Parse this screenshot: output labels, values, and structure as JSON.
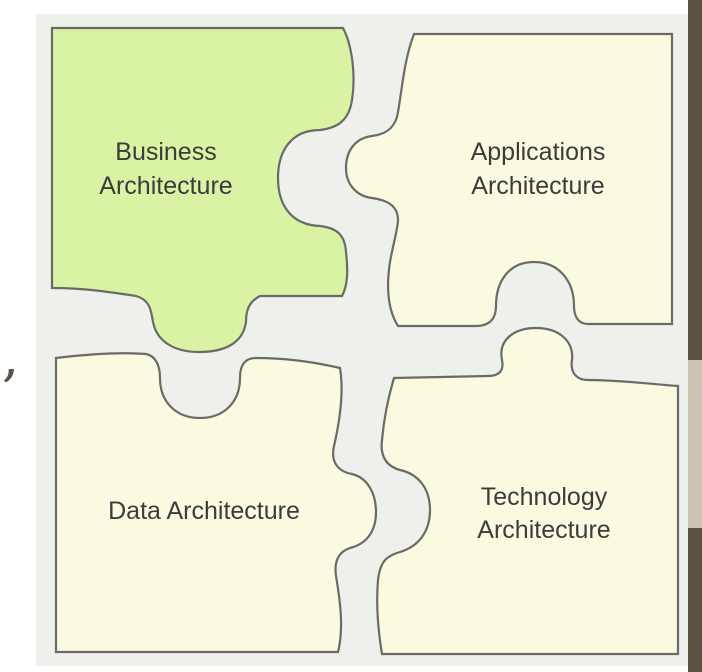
{
  "colors": {
    "business_fill": "#d9f2a4",
    "other_fill": "#fafae0",
    "outline": "#6b6b66",
    "background": "#eef0ec",
    "side_bar_dark": "#5b5346",
    "side_bar_light": "#c9c4b5"
  },
  "pieces": {
    "business": {
      "lines": [
        "Business",
        "Architecture"
      ]
    },
    "applications": {
      "lines": [
        "Applications",
        "Architecture"
      ]
    },
    "data": {
      "lines": [
        "Data Architecture"
      ]
    },
    "technology": {
      "lines": [
        "Technology",
        "Architecture"
      ]
    }
  },
  "edge_mark": ","
}
